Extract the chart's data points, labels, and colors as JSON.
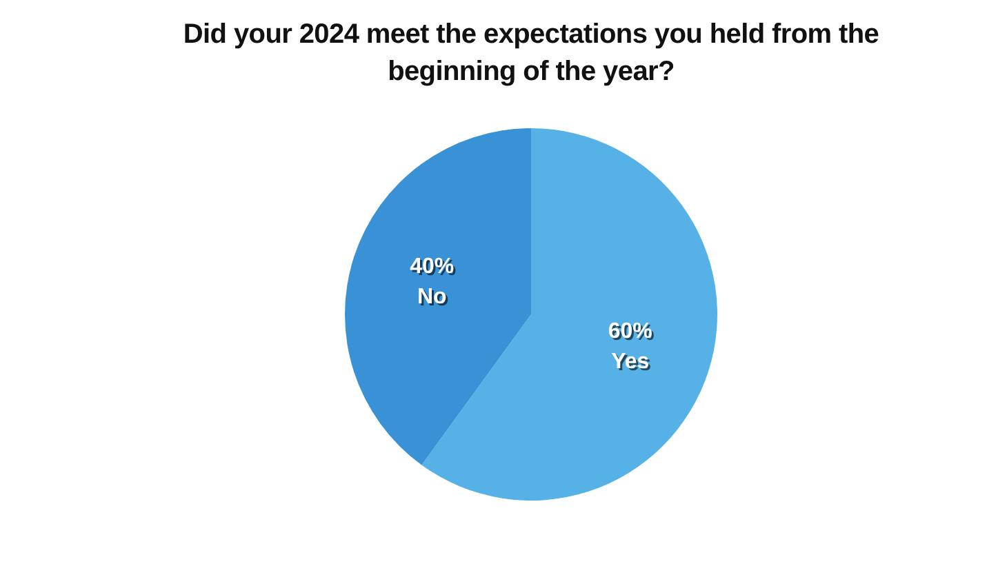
{
  "chart_data": {
    "type": "pie",
    "title": "Did your 2024 meet the expectations you held from the beginning of the year?",
    "categories": [
      "Yes",
      "No"
    ],
    "values": [
      60,
      40
    ],
    "colors": [
      "#56b2e6",
      "#3991d6"
    ],
    "value_labels": [
      "60%",
      "40%"
    ],
    "legend": false
  }
}
